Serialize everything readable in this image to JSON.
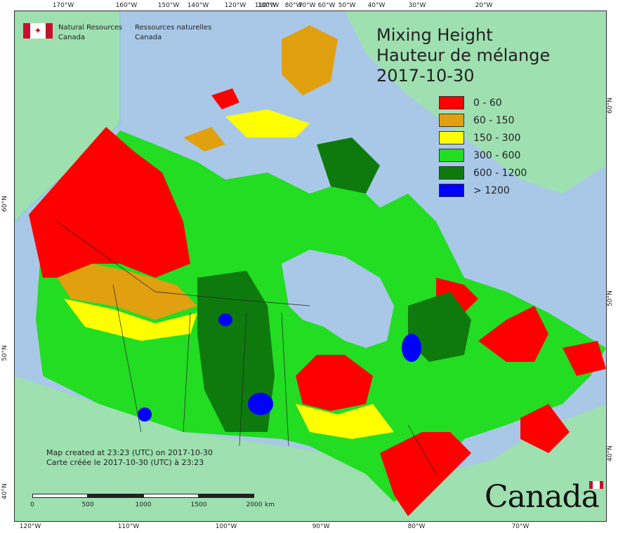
{
  "title": {
    "line1": "Mixing Height",
    "line2": "Hauteur de mélange",
    "date": "2017-10-30"
  },
  "agency": {
    "en_line1": "Natural Resources",
    "en_line2": "Canada",
    "fr_line1": "Ressources naturelles",
    "fr_line2": "Canada"
  },
  "legend": [
    {
      "label": "0 - 60",
      "color": "#ff0000"
    },
    {
      "label": "60 - 150",
      "color": "#e0a010"
    },
    {
      "label": "150 - 300",
      "color": "#ffff00"
    },
    {
      "label": "300 - 600",
      "color": "#22dd22"
    },
    {
      "label": "600 - 1200",
      "color": "#0e7a0e"
    },
    {
      "label": "> 1200",
      "color": "#0000ff"
    }
  ],
  "colors": {
    "ocean": "#a9c8e8",
    "foreign_land": "#9ee0b0",
    "low": "#ff0000",
    "mid_low": "#e0a010",
    "mid": "#ffff00",
    "mid_high": "#22dd22",
    "high": "#0e7a0e",
    "very_high": "#0000ff"
  },
  "graticule": {
    "top": [
      "170°W",
      "160°W",
      "150°W",
      "140°W",
      "120°W",
      "110°W",
      "100°W",
      "80°W",
      "70°W",
      "60°W",
      "50°W",
      "40°W",
      "30°W",
      "20°W"
    ],
    "bottom": [
      "120°W",
      "110°W",
      "100°W",
      "90°W",
      "80°W",
      "70°W"
    ],
    "left": [
      "60°N",
      "50°N",
      "40°N"
    ],
    "right": [
      "60°N",
      "50°N",
      "40°N"
    ]
  },
  "credits": {
    "line1": "Map created at 23:23 (UTC) on 2017-10-30",
    "line2": "Carte créée le 2017-10-30 (UTC) à 23:23"
  },
  "scale": {
    "labels": [
      "0",
      "500",
      "1000",
      "1500",
      "2000"
    ],
    "unit": "km"
  },
  "wordmark": "Canada"
}
